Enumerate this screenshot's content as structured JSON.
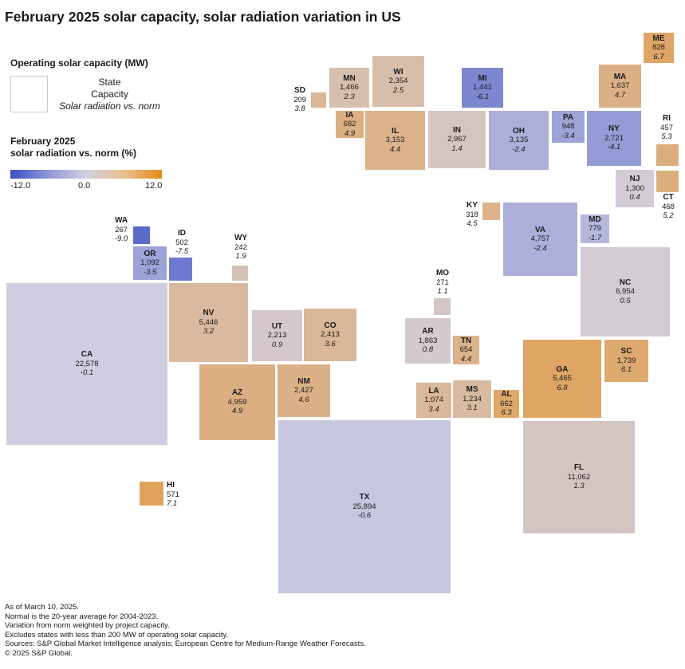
{
  "title": "February 2025 solar capacity, solar radiation variation in US",
  "legend": {
    "heading": "Operating solar capacity (MW)",
    "state": "State",
    "capacity": "Capacity",
    "variation": "Solar radiation vs. norm",
    "scale_heading_1": "February 2025",
    "scale_heading_2": "solar radiation vs. norm (%)",
    "ticks": [
      "-12.0",
      "0.0",
      "12.0"
    ],
    "scale_colors": [
      "#3b4fc4",
      "#d2d0e0",
      "#e68a17"
    ]
  },
  "chart_data": {
    "type": "cartogram",
    "title": "February 2025 solar capacity, solar radiation variation in US",
    "size_measure": "Operating solar capacity (MW)",
    "color_measure": "Solar radiation vs. norm (%)",
    "color_range": [
      -12,
      12
    ],
    "states": [
      {
        "abbr": "CA",
        "capacity": "22,578",
        "variation": "-0.1"
      },
      {
        "abbr": "TX",
        "capacity": "25,894",
        "variation": "-0.6"
      },
      {
        "abbr": "FL",
        "capacity": "11,062",
        "variation": "1.3"
      },
      {
        "abbr": "NC",
        "capacity": "6,954",
        "variation": "0.5"
      },
      {
        "abbr": "NV",
        "capacity": "5,446",
        "variation": "3.2"
      },
      {
        "abbr": "GA",
        "capacity": "5,465",
        "variation": "6.8"
      },
      {
        "abbr": "AZ",
        "capacity": "4,959",
        "variation": "4.9"
      },
      {
        "abbr": "VA",
        "capacity": "4,757",
        "variation": "-2.4"
      },
      {
        "abbr": "IL",
        "capacity": "3,153",
        "variation": "4.4"
      },
      {
        "abbr": "OH",
        "capacity": "3,135",
        "variation": "-2.4"
      },
      {
        "abbr": "IN",
        "capacity": "2,967",
        "variation": "1.4"
      },
      {
        "abbr": "NY",
        "capacity": "2,721",
        "variation": "-4.1"
      },
      {
        "abbr": "NM",
        "capacity": "2,427",
        "variation": "4.6"
      },
      {
        "abbr": "CO",
        "capacity": "2,413",
        "variation": "3.6"
      },
      {
        "abbr": "WI",
        "capacity": "2,354",
        "variation": "2.5"
      },
      {
        "abbr": "UT",
        "capacity": "2,213",
        "variation": "0.9"
      },
      {
        "abbr": "AR",
        "capacity": "1,863",
        "variation": "0.8"
      },
      {
        "abbr": "SC",
        "capacity": "1,739",
        "variation": "6.1"
      },
      {
        "abbr": "MA",
        "capacity": "1,637",
        "variation": "4.7"
      },
      {
        "abbr": "MN",
        "capacity": "1,466",
        "variation": "2.3"
      },
      {
        "abbr": "MI",
        "capacity": "1,441",
        "variation": "-6.1"
      },
      {
        "abbr": "NJ",
        "capacity": "1,300",
        "variation": "0.4"
      },
      {
        "abbr": "MS",
        "capacity": "1,234",
        "variation": "3.1"
      },
      {
        "abbr": "OR",
        "capacity": "1,092",
        "variation": "-3.5"
      },
      {
        "abbr": "LA",
        "capacity": "1,074",
        "variation": "3.4"
      },
      {
        "abbr": "PA",
        "capacity": "948",
        "variation": "-3.4"
      },
      {
        "abbr": "ME",
        "capacity": "828",
        "variation": "6.7"
      },
      {
        "abbr": "MD",
        "capacity": "779",
        "variation": "-1.7"
      },
      {
        "abbr": "IA",
        "capacity": "682",
        "variation": "4.9"
      },
      {
        "abbr": "AL",
        "capacity": "662",
        "variation": "6.3"
      },
      {
        "abbr": "TN",
        "capacity": "654",
        "variation": "4.4"
      },
      {
        "abbr": "HI",
        "capacity": "571",
        "variation": "7.1"
      },
      {
        "abbr": "ID",
        "capacity": "502",
        "variation": "-7.5"
      },
      {
        "abbr": "CT",
        "capacity": "468",
        "variation": "5.2"
      },
      {
        "abbr": "RI",
        "capacity": "457",
        "variation": "5.3"
      },
      {
        "abbr": "KY",
        "capacity": "318",
        "variation": "4.5"
      },
      {
        "abbr": "MO",
        "capacity": "271",
        "variation": "1.1"
      },
      {
        "abbr": "WA",
        "capacity": "267",
        "variation": "-9.0"
      },
      {
        "abbr": "WY",
        "capacity": "242",
        "variation": "1.9"
      },
      {
        "abbr": "SD",
        "capacity": "209",
        "variation": "3.8"
      }
    ]
  },
  "notes": [
    "As of March 10, 2025.",
    "Normal is the 20-year average for 2004-2023.",
    "Variation from norm weighted by project capacity.",
    "Excludes states with less than 200 MW of operating solar capacity.",
    "Sources: S&P Global Market Intelligence analysis; European Centre for Medium-Range Weather Forecasts.",
    "© 2025 S&P Global."
  ]
}
